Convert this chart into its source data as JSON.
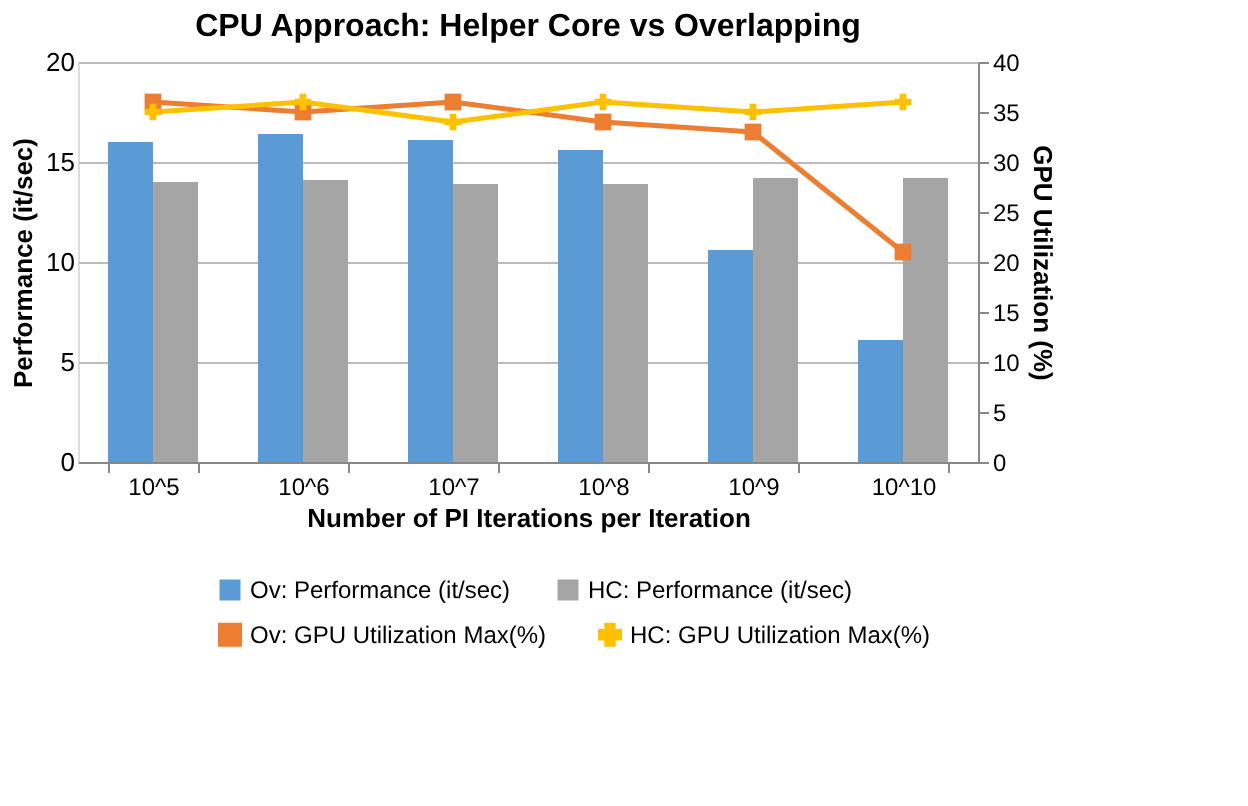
{
  "chart_data": {
    "type": "bar",
    "title": "CPU Approach: Helper Core vs Overlapping",
    "xlabel": "Number of PI Iterations per Iteration",
    "ylabel": "Performance (it/sec)",
    "y2label": "GPU Utilization (%)",
    "categories": [
      "10^5",
      "10^6",
      "10^7",
      "10^8",
      "10^9",
      "10^10"
    ],
    "series": [
      {
        "name": "Ov: Performance (it/sec)",
        "color": "#5b9bd5",
        "values": [
          16.0,
          16.4,
          16.1,
          15.6,
          10.6,
          6.1
        ]
      },
      {
        "name": "HC: Performance (it/sec)",
        "color": "#a5a5a5",
        "values": [
          14.0,
          14.1,
          13.9,
          13.9,
          14.2,
          14.2
        ]
      },
      {
        "name": "Ov: GPU Utilization Max(%)",
        "type": "line",
        "axis": "y2",
        "marker": "square",
        "color": "#ed7d31",
        "values": [
          36,
          35,
          36,
          34,
          33,
          21
        ]
      },
      {
        "name": "HC: GPU Utilization Max(%)",
        "type": "line",
        "axis": "y2",
        "marker": "cross",
        "color": "#ffc000",
        "values": [
          35,
          36,
          34,
          36,
          35,
          36
        ]
      }
    ],
    "ylim": [
      0,
      20
    ],
    "yticks": [
      0,
      5,
      10,
      15,
      20
    ],
    "y2lim": [
      0,
      40
    ],
    "y2ticks": [
      0,
      5,
      10,
      15,
      20,
      25,
      30,
      35,
      40
    ],
    "grid": "y",
    "legend": "bottom"
  }
}
